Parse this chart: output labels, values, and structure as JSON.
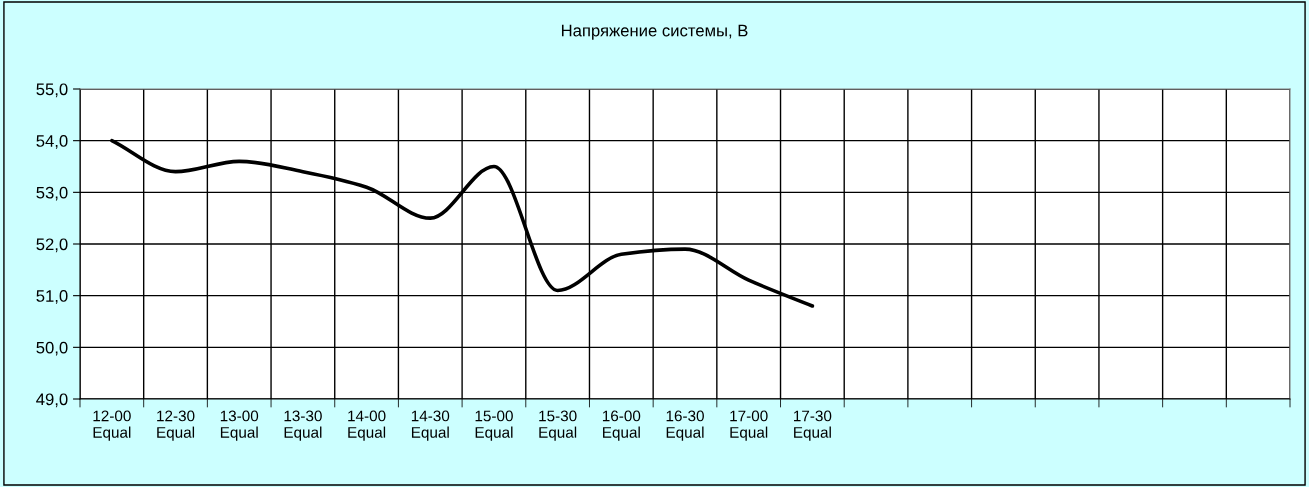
{
  "chart_data": {
    "type": "line",
    "title": "Напряжение системы, В",
    "categories": [
      "12-00\nEqual",
      "12-30\nEqual",
      "13-00\nEqual",
      "13-30\nEqual",
      "14-00\nEqual",
      "14-30\nEqual",
      "15-00\nEqual",
      "15-30\nEqual",
      "16-00\nEqual",
      "16-30\nEqual",
      "17-00\nEqual",
      "17-30\nEqual",
      null,
      null,
      null,
      null,
      null,
      null,
      null
    ],
    "series": [
      {
        "color": "#000000",
        "values": [
          54.0,
          53.4,
          53.6,
          53.4,
          53.1,
          52.5,
          53.5,
          51.1,
          51.8,
          51.9,
          51.3,
          50.8,
          null,
          null,
          null,
          null,
          null,
          null,
          null
        ]
      }
    ],
    "ylim": [
      49,
      55
    ],
    "yticks": [
      {
        "value": 49,
        "label": "49,0"
      },
      {
        "value": 50,
        "label": "50,0"
      },
      {
        "value": 51,
        "label": "51,0"
      },
      {
        "value": 52,
        "label": "52,0"
      },
      {
        "value": 53,
        "label": "53,0"
      },
      {
        "value": 54,
        "label": "54,0"
      },
      {
        "value": 55,
        "label": "55,0"
      }
    ],
    "grid": true,
    "marker": "none",
    "line_style": "solid",
    "legend": false
  }
}
